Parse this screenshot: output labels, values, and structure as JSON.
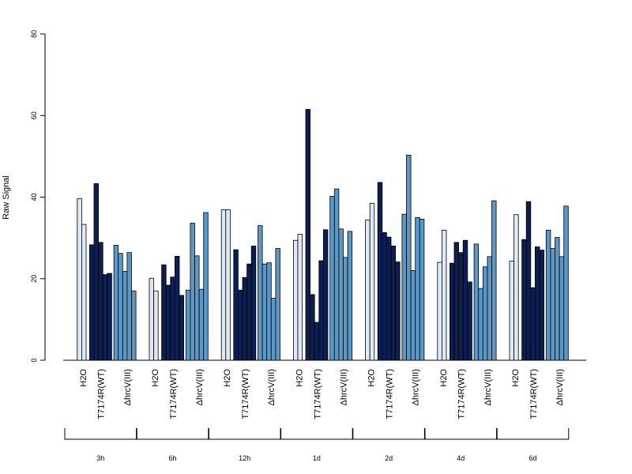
{
  "chart_data": {
    "type": "bar",
    "ylabel": "Raw Signal",
    "ylim": [
      0,
      80
    ],
    "yticks": [
      0,
      20,
      40,
      60,
      80
    ],
    "treatments": [
      "H2O",
      "T7174R(WT)",
      "ΔhrcV(III)"
    ],
    "colors": {
      "H2O": "#dee9f5",
      "T7174R(WT)": "#0b1f52",
      "ΔhrcV(III)": "#5b98c6"
    },
    "groups": [
      {
        "label": "3h",
        "values": {
          "H2O": [
            39.6,
            33.3
          ],
          "T7174R(WT)": [
            28.3,
            43.3,
            28.9,
            21.0,
            21.3
          ],
          "ΔhrcV(III)": [
            28.2,
            26.2,
            21.8,
            26.4,
            17.0
          ]
        }
      },
      {
        "label": "6h",
        "values": {
          "H2O": [
            20.1,
            17.0
          ],
          "T7174R(WT)": [
            23.4,
            18.4,
            20.4,
            25.5,
            15.9
          ],
          "ΔhrcV(III)": [
            17.2,
            33.6,
            25.6,
            17.4,
            36.2
          ]
        }
      },
      {
        "label": "12h",
        "values": {
          "H2O": [
            36.9,
            36.9
          ],
          "T7174R(WT)": [
            27.1,
            17.2,
            20.3,
            23.6,
            28.0
          ],
          "ΔhrcV(III)": [
            33.0,
            23.6,
            23.9,
            15.2,
            27.4
          ]
        }
      },
      {
        "label": "1d",
        "values": {
          "H2O": [
            29.4,
            30.9
          ],
          "T7174R(WT)": [
            61.5,
            16.1,
            9.3,
            24.4,
            32.0
          ],
          "ΔhrcV(III)": [
            40.2,
            42.0,
            32.2,
            25.2,
            31.6
          ]
        }
      },
      {
        "label": "2d",
        "values": {
          "H2O": [
            34.4,
            38.5
          ],
          "T7174R(WT)": [
            43.6,
            31.3,
            30.2,
            28.0,
            24.1
          ],
          "ΔhrcV(III)": [
            35.8,
            50.3,
            22.0,
            35.0,
            34.6
          ]
        }
      },
      {
        "label": "4d",
        "values": {
          "H2O": [
            24.0,
            31.9
          ],
          "T7174R(WT)": [
            23.8,
            28.9,
            26.4,
            29.4,
            19.2
          ],
          "ΔhrcV(III)": [
            28.5,
            17.6,
            22.9,
            25.4,
            39.1
          ]
        }
      },
      {
        "label": "6d",
        "values": {
          "H2O": [
            24.3,
            35.7
          ],
          "T7174R(WT)": [
            29.6,
            38.9,
            17.8,
            27.8,
            27.0
          ],
          "ΔhrcV(III)": [
            31.9,
            27.4,
            30.1,
            25.4,
            37.8
          ]
        }
      }
    ]
  }
}
